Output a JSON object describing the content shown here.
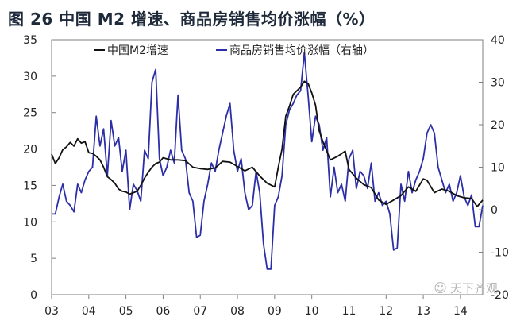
{
  "title": "图 26 中国 M2 增速、商品房销售均价涨幅（%）",
  "watermark": "天下齐观",
  "colors": {
    "m2": "#111111",
    "price": "#2c2ea8",
    "frame": "#7f7f7f",
    "title": "#1e2a3a"
  },
  "chart_data": {
    "type": "line",
    "title": "图 26 中国 M2 增速、商品房销售均价涨幅（%）",
    "legend_position": "top",
    "grid": false,
    "x_ticks": [
      "03",
      "04",
      "05",
      "06",
      "07",
      "08",
      "09",
      "10",
      "11",
      "12",
      "13",
      "14"
    ],
    "x_range": [
      2003.0,
      2014.6
    ],
    "y_left": {
      "range": [
        0,
        35
      ],
      "ticks": [
        0,
        5,
        10,
        15,
        20,
        25,
        30,
        35
      ]
    },
    "y_right": {
      "range": [
        -20,
        40
      ],
      "ticks": [
        -20,
        -10,
        0,
        10,
        20,
        30,
        40
      ]
    },
    "series": [
      {
        "name": "中国M2增速",
        "axis": "left",
        "points": [
          [
            2003.0,
            19.3
          ],
          [
            2003.1,
            18.0
          ],
          [
            2003.2,
            18.8
          ],
          [
            2003.3,
            19.9
          ],
          [
            2003.4,
            20.3
          ],
          [
            2003.5,
            20.9
          ],
          [
            2003.6,
            20.4
          ],
          [
            2003.7,
            21.4
          ],
          [
            2003.8,
            20.8
          ],
          [
            2003.9,
            21.0
          ],
          [
            2004.0,
            19.5
          ],
          [
            2004.1,
            19.4
          ],
          [
            2004.2,
            19.0
          ],
          [
            2004.3,
            18.5
          ],
          [
            2004.4,
            17.5
          ],
          [
            2004.5,
            16.2
          ],
          [
            2004.6,
            15.8
          ],
          [
            2004.7,
            15.3
          ],
          [
            2004.8,
            14.5
          ],
          [
            2004.9,
            14.2
          ],
          [
            2005.0,
            14.1
          ],
          [
            2005.1,
            13.8
          ],
          [
            2005.2,
            14.0
          ],
          [
            2005.3,
            14.2
          ],
          [
            2005.4,
            15.0
          ],
          [
            2005.5,
            16.0
          ],
          [
            2005.6,
            16.8
          ],
          [
            2005.7,
            17.5
          ],
          [
            2005.8,
            18.0
          ],
          [
            2005.9,
            18.2
          ],
          [
            2006.0,
            18.8
          ],
          [
            2006.2,
            18.5
          ],
          [
            2006.4,
            18.5
          ],
          [
            2006.6,
            18.4
          ],
          [
            2006.8,
            17.5
          ],
          [
            2007.0,
            17.3
          ],
          [
            2007.2,
            17.2
          ],
          [
            2007.4,
            17.4
          ],
          [
            2007.6,
            18.3
          ],
          [
            2007.8,
            18.2
          ],
          [
            2008.0,
            17.6
          ],
          [
            2008.2,
            17.0
          ],
          [
            2008.4,
            17.5
          ],
          [
            2008.6,
            16.3
          ],
          [
            2008.8,
            15.3
          ],
          [
            2009.0,
            14.8
          ],
          [
            2009.1,
            17.5
          ],
          [
            2009.2,
            20.0
          ],
          [
            2009.3,
            24.5
          ],
          [
            2009.4,
            25.9
          ],
          [
            2009.5,
            27.5
          ],
          [
            2009.6,
            28.0
          ],
          [
            2009.7,
            28.5
          ],
          [
            2009.8,
            29.3
          ],
          [
            2009.9,
            29.0
          ],
          [
            2010.0,
            27.7
          ],
          [
            2010.1,
            26.0
          ],
          [
            2010.2,
            22.5
          ],
          [
            2010.3,
            21.0
          ],
          [
            2010.5,
            18.5
          ],
          [
            2010.7,
            19.0
          ],
          [
            2010.9,
            19.7
          ],
          [
            2011.0,
            17.2
          ],
          [
            2011.2,
            16.0
          ],
          [
            2011.4,
            15.1
          ],
          [
            2011.6,
            14.7
          ],
          [
            2011.8,
            13.0
          ],
          [
            2012.0,
            12.4
          ],
          [
            2012.2,
            13.0
          ],
          [
            2012.4,
            13.6
          ],
          [
            2012.6,
            14.8
          ],
          [
            2012.8,
            14.2
          ],
          [
            2013.0,
            15.9
          ],
          [
            2013.1,
            15.7
          ],
          [
            2013.3,
            14.0
          ],
          [
            2013.5,
            14.5
          ],
          [
            2013.7,
            14.2
          ],
          [
            2013.9,
            13.6
          ],
          [
            2014.1,
            13.3
          ],
          [
            2014.3,
            13.2
          ],
          [
            2014.45,
            12.1
          ],
          [
            2014.6,
            13.0
          ]
        ]
      },
      {
        "name": "商品房销售均价涨幅（右轴）",
        "axis": "right",
        "points": [
          [
            2003.0,
            -1.0
          ],
          [
            2003.1,
            -1.0
          ],
          [
            2003.2,
            3.0
          ],
          [
            2003.3,
            6.0
          ],
          [
            2003.4,
            2.0
          ],
          [
            2003.5,
            1.0
          ],
          [
            2003.6,
            -0.5
          ],
          [
            2003.7,
            6.0
          ],
          [
            2003.8,
            4.0
          ],
          [
            2003.9,
            7.0
          ],
          [
            2004.0,
            9.0
          ],
          [
            2004.1,
            10.0
          ],
          [
            2004.2,
            22.0
          ],
          [
            2004.3,
            15.0
          ],
          [
            2004.4,
            19.0
          ],
          [
            2004.5,
            8.0
          ],
          [
            2004.6,
            21.0
          ],
          [
            2004.7,
            15.0
          ],
          [
            2004.8,
            17.0
          ],
          [
            2004.9,
            9.0
          ],
          [
            2005.0,
            14.0
          ],
          [
            2005.1,
            0.0
          ],
          [
            2005.2,
            6.0
          ],
          [
            2005.3,
            4.5
          ],
          [
            2005.4,
            2.0
          ],
          [
            2005.5,
            14.0
          ],
          [
            2005.6,
            12.0
          ],
          [
            2005.7,
            30.0
          ],
          [
            2005.8,
            33.0
          ],
          [
            2005.9,
            12.0
          ],
          [
            2006.0,
            8.0
          ],
          [
            2006.1,
            10.0
          ],
          [
            2006.2,
            14.0
          ],
          [
            2006.3,
            11.0
          ],
          [
            2006.4,
            27.0
          ],
          [
            2006.5,
            14.0
          ],
          [
            2006.6,
            12.0
          ],
          [
            2006.7,
            4.0
          ],
          [
            2006.8,
            2.0
          ],
          [
            2006.9,
            -6.5
          ],
          [
            2007.0,
            -6.0
          ],
          [
            2007.1,
            2.0
          ],
          [
            2007.2,
            6.0
          ],
          [
            2007.3,
            11.0
          ],
          [
            2007.4,
            9.0
          ],
          [
            2007.5,
            14.0
          ],
          [
            2007.6,
            18.0
          ],
          [
            2007.7,
            22.0
          ],
          [
            2007.8,
            25.0
          ],
          [
            2007.9,
            14.0
          ],
          [
            2008.0,
            9.0
          ],
          [
            2008.1,
            12.0
          ],
          [
            2008.2,
            4.0
          ],
          [
            2008.3,
            0.0
          ],
          [
            2008.4,
            1.0
          ],
          [
            2008.5,
            9.0
          ],
          [
            2008.6,
            4.0
          ],
          [
            2008.7,
            -8.0
          ],
          [
            2008.8,
            -14.0
          ],
          [
            2008.9,
            -14.0
          ],
          [
            2009.0,
            1.0
          ],
          [
            2009.1,
            3.0
          ],
          [
            2009.2,
            8.0
          ],
          [
            2009.3,
            20.0
          ],
          [
            2009.4,
            23.5
          ],
          [
            2009.5,
            25.0
          ],
          [
            2009.6,
            27.0
          ],
          [
            2009.7,
            28.0
          ],
          [
            2009.8,
            37.0
          ],
          [
            2009.9,
            27.0
          ],
          [
            2010.0,
            16.0
          ],
          [
            2010.1,
            22.0
          ],
          [
            2010.2,
            20.0
          ],
          [
            2010.3,
            14.0
          ],
          [
            2010.4,
            17.0
          ],
          [
            2010.5,
            3.0
          ],
          [
            2010.6,
            10.0
          ],
          [
            2010.7,
            4.0
          ],
          [
            2010.8,
            6.0
          ],
          [
            2010.9,
            2.0
          ],
          [
            2011.0,
            12.0
          ],
          [
            2011.1,
            14.0
          ],
          [
            2011.2,
            5.0
          ],
          [
            2011.3,
            9.0
          ],
          [
            2011.4,
            8.0
          ],
          [
            2011.5,
            5.0
          ],
          [
            2011.6,
            11.0
          ],
          [
            2011.7,
            2.0
          ],
          [
            2011.8,
            4.0
          ],
          [
            2011.9,
            1.0
          ],
          [
            2012.0,
            2.0
          ],
          [
            2012.1,
            -1.0
          ],
          [
            2012.2,
            -9.5
          ],
          [
            2012.3,
            -9.0
          ],
          [
            2012.4,
            6.0
          ],
          [
            2012.5,
            2.0
          ],
          [
            2012.6,
            9.0
          ],
          [
            2012.7,
            4.0
          ],
          [
            2012.8,
            7.0
          ],
          [
            2012.9,
            9.0
          ],
          [
            2013.0,
            12.0
          ],
          [
            2013.1,
            18.0
          ],
          [
            2013.2,
            20.0
          ],
          [
            2013.3,
            18.0
          ],
          [
            2013.4,
            10.0
          ],
          [
            2013.5,
            7.0
          ],
          [
            2013.6,
            4.0
          ],
          [
            2013.7,
            6.0
          ],
          [
            2013.8,
            2.0
          ],
          [
            2013.9,
            4.0
          ],
          [
            2014.0,
            8.0
          ],
          [
            2014.1,
            3.0
          ],
          [
            2014.2,
            1.0
          ],
          [
            2014.3,
            3.5
          ],
          [
            2014.4,
            -4.0
          ],
          [
            2014.5,
            -4.0
          ],
          [
            2014.6,
            1.0
          ]
        ]
      }
    ]
  }
}
